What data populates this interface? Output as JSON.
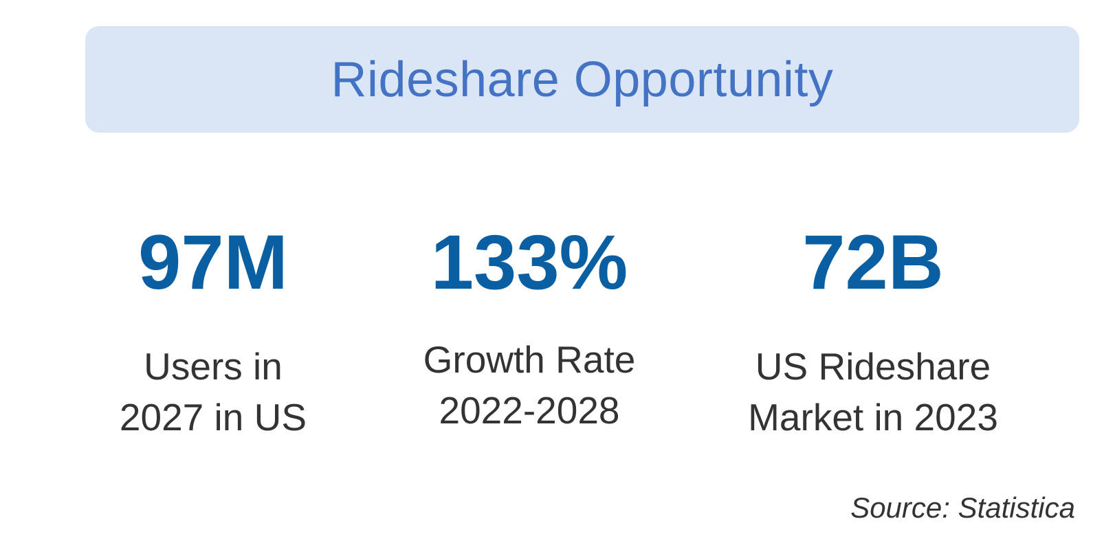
{
  "banner": {
    "title": "Rideshare Opportunity"
  },
  "stats": [
    {
      "value": "97M",
      "label_line1": "Users in",
      "label_line2": "2027 in US"
    },
    {
      "value": "133%",
      "label_line1": "Growth Rate",
      "label_line2": "2022-2028"
    },
    {
      "value": "72B",
      "label_line1": "US Rideshare",
      "label_line2": "Market in 2023"
    }
  ],
  "footer": {
    "source": "Source: Statistica"
  },
  "colors": {
    "banner_background": "#dae6f5",
    "title_color": "#4472c4",
    "stat_value_color": "#0a5fa3",
    "text_color": "#333333"
  }
}
